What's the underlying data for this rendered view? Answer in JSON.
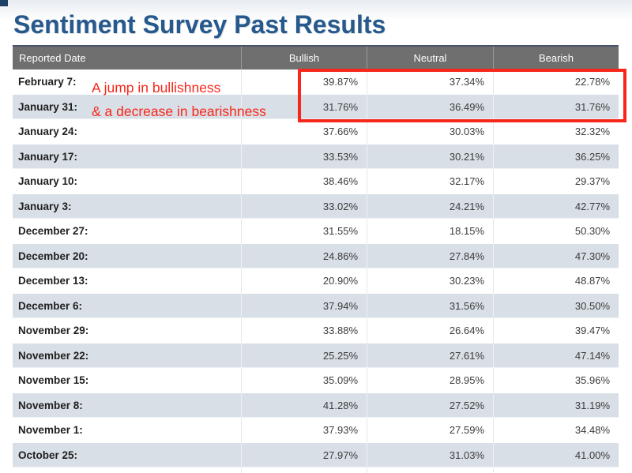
{
  "page": {
    "title": "Sentiment Survey Past Results"
  },
  "annotation": {
    "line1": "A jump in bullishness",
    "line2": "& a decrease in bearishness"
  },
  "table": {
    "headers": [
      "Reported Date",
      "Bullish",
      "Neutral",
      "Bearish"
    ],
    "rows": [
      {
        "date": "February 7:",
        "bullish": "39.87%",
        "neutral": "37.34%",
        "bearish": "22.78%"
      },
      {
        "date": "January 31:",
        "bullish": "31.76%",
        "neutral": "36.49%",
        "bearish": "31.76%"
      },
      {
        "date": "January 24:",
        "bullish": "37.66%",
        "neutral": "30.03%",
        "bearish": "32.32%"
      },
      {
        "date": "January 17:",
        "bullish": "33.53%",
        "neutral": "30.21%",
        "bearish": "36.25%"
      },
      {
        "date": "January 10:",
        "bullish": "38.46%",
        "neutral": "32.17%",
        "bearish": "29.37%"
      },
      {
        "date": "January 3:",
        "bullish": "33.02%",
        "neutral": "24.21%",
        "bearish": "42.77%"
      },
      {
        "date": "December 27:",
        "bullish": "31.55%",
        "neutral": "18.15%",
        "bearish": "50.30%"
      },
      {
        "date": "December 20:",
        "bullish": "24.86%",
        "neutral": "27.84%",
        "bearish": "47.30%"
      },
      {
        "date": "December 13:",
        "bullish": "20.90%",
        "neutral": "30.23%",
        "bearish": "48.87%"
      },
      {
        "date": "December 6:",
        "bullish": "37.94%",
        "neutral": "31.56%",
        "bearish": "30.50%"
      },
      {
        "date": "November 29:",
        "bullish": "33.88%",
        "neutral": "26.64%",
        "bearish": "39.47%"
      },
      {
        "date": "November 22:",
        "bullish": "25.25%",
        "neutral": "27.61%",
        "bearish": "47.14%"
      },
      {
        "date": "November 15:",
        "bullish": "35.09%",
        "neutral": "28.95%",
        "bearish": "35.96%"
      },
      {
        "date": "November 8:",
        "bullish": "41.28%",
        "neutral": "27.52%",
        "bearish": "31.19%"
      },
      {
        "date": "November 1:",
        "bullish": "37.93%",
        "neutral": "27.59%",
        "bearish": "34.48%"
      },
      {
        "date": "October 25:",
        "bullish": "27.97%",
        "neutral": "31.03%",
        "bearish": "41.00%"
      }
    ]
  },
  "colors": {
    "title": "#27598d",
    "header_bg": "#6f6f6f",
    "alt_row_bg": "#d9dfe6",
    "red": "#f8271b"
  },
  "chart_data": {
    "type": "table",
    "title": "Sentiment Survey Past Results",
    "columns": [
      "Reported Date",
      "Bullish",
      "Neutral",
      "Bearish"
    ],
    "categories": [
      "February 7",
      "January 31",
      "January 24",
      "January 17",
      "January 10",
      "January 3",
      "December 27",
      "December 20",
      "December 13",
      "December 6",
      "November 29",
      "November 22",
      "November 15",
      "November 8",
      "November 1",
      "October 25"
    ],
    "series": [
      {
        "name": "Bullish",
        "values": [
          39.87,
          31.76,
          37.66,
          33.53,
          38.46,
          33.02,
          31.55,
          24.86,
          20.9,
          37.94,
          33.88,
          25.25,
          35.09,
          41.28,
          37.93,
          27.97
        ]
      },
      {
        "name": "Neutral",
        "values": [
          37.34,
          36.49,
          30.03,
          30.21,
          32.17,
          24.21,
          18.15,
          27.84,
          30.23,
          31.56,
          26.64,
          27.61,
          28.95,
          27.52,
          27.59,
          31.03
        ]
      },
      {
        "name": "Bearish",
        "values": [
          22.78,
          31.76,
          32.32,
          36.25,
          29.37,
          42.77,
          50.3,
          47.3,
          48.87,
          30.5,
          39.47,
          47.14,
          35.96,
          31.19,
          34.48,
          41.0
        ]
      }
    ],
    "annotations": [
      "A jump in bullishness & a decrease in bearishness (red text over first two rows)",
      "Red rectangle highlighting the Bullish/Neutral/Bearish values of February 7 and January 31 rows"
    ],
    "layout_hints": {
      "alternating_row_shading": true,
      "values_unit": "percent"
    }
  }
}
